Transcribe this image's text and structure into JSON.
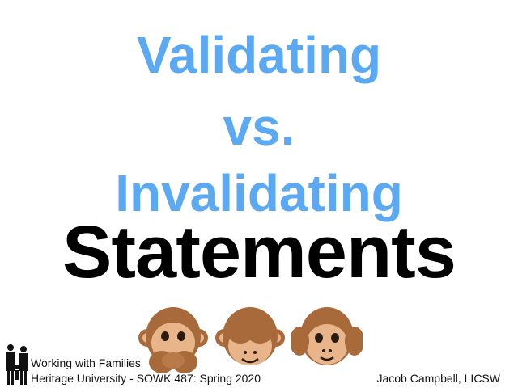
{
  "slide": {
    "title_lines": [
      "Validating",
      "vs.",
      "Invalidating"
    ],
    "headline": "Statements",
    "title_color": "#5aa9f2",
    "monkeys": [
      "see-no-evil-monkey-icon",
      "hear-no-evil-monkey-icon",
      "speak-no-evil-monkey-icon"
    ]
  },
  "footer": {
    "course": "Working with Families",
    "subtitle": "Heritage University - SOWK 487: Spring 2020",
    "author": "Jacob Campbell, LICSW",
    "logo_icon": "family-logo-icon"
  }
}
